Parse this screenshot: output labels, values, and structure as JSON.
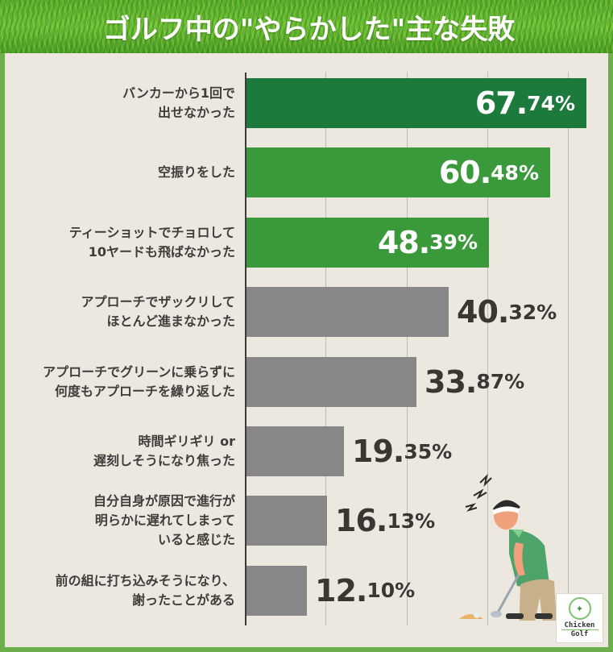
{
  "header": {
    "title": "ゴルフ中の\"やらかした\"主な失敗"
  },
  "colors": {
    "frame": "#6db04b",
    "background": "#ece8df",
    "bar_top": "#1b7a3c",
    "bar_green": "#3a9a3b",
    "bar_gray": "#878787",
    "label_text": "#3f3c3b"
  },
  "chart_data": {
    "type": "bar",
    "orientation": "horizontal",
    "title": "ゴルフ中の\"やらかした\"主な失敗",
    "xlabel": "",
    "ylabel": "",
    "unit": "%",
    "grid": true,
    "categories": [
      "バンカーから1回で出せなかった",
      "空振りをした",
      "ティーショットでチョロして10ヤードも飛ばなかった",
      "アプローチでザックリしてほとんど進まなかった",
      "アプローチでグリーンに乗らずに何度もアプローチを繰り返した",
      "時間ギリギリ or 遅刻しそうになり焦った",
      "自分自身が原因で進行が明らかに遅れてしまっていると感じた",
      "前の組に打ち込みそうになり、謝ったことがある"
    ],
    "values": [
      67.74,
      60.48,
      48.39,
      40.32,
      33.87,
      19.35,
      16.13,
      12.1
    ]
  },
  "rows": [
    {
      "label": "バンカーから1回で\n出せなかった",
      "int": "67.",
      "dec": "74%",
      "value": 67.74,
      "color": "#1b7a3c",
      "inside": true
    },
    {
      "label": "空振りをした",
      "int": "60.",
      "dec": "48%",
      "value": 60.48,
      "color": "#3a9a3b",
      "inside": true
    },
    {
      "label": "ティーショットでチョロして\n10ヤードも飛ばなかった",
      "int": "48.",
      "dec": "39%",
      "value": 48.39,
      "color": "#3a9a3b",
      "inside": true
    },
    {
      "label": "アプローチでザックリして\nほとんど進まなかった",
      "int": "40.",
      "dec": "32%",
      "value": 40.32,
      "color": "#878787",
      "inside": false
    },
    {
      "label": "アプローチでグリーンに乗らずに\n何度もアプローチを繰り返した",
      "int": "33.",
      "dec": "87%",
      "value": 33.87,
      "color": "#878787",
      "inside": false
    },
    {
      "label": "時間ギリギリ or\n遅刻しそうになり焦った",
      "int": "19.",
      "dec": "35%",
      "value": 19.35,
      "color": "#878787",
      "inside": false
    },
    {
      "label": "自分自身が原因で進行が\n明らかに遅れてしまって\nいると感じた",
      "int": "16.",
      "dec": "13%",
      "value": 16.13,
      "color": "#878787",
      "inside": false
    },
    {
      "label": "前の組に打ち込みそうになり、\n謝ったことがある",
      "int": "12.",
      "dec": "10%",
      "value": 12.1,
      "color": "#878787",
      "inside": false
    }
  ],
  "logo": {
    "line1": "Chicken",
    "line2": "Golf",
    "icon": "rooster-icon"
  },
  "illustration": {
    "icon": "frustrated-golfer-icon"
  }
}
